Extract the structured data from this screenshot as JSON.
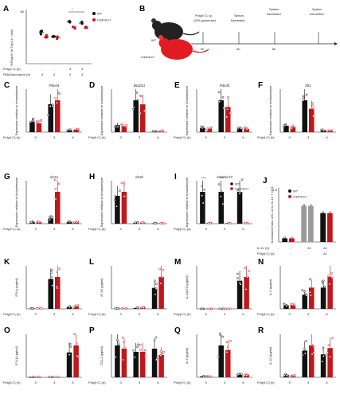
{
  "colors": {
    "wt": "#111111",
    "ko": "#c0171c",
    "grey_bar": "#9a9a9a",
    "bg": "#ffffff"
  },
  "panel_a": {
    "letter": "A",
    "ylabel": "%Foxp3+ in Thy1.1+ cells",
    "ymax": "80",
    "row1": {
      "label": "Poly(I:C) (h)",
      "values": [
        "-",
        "-",
        "3",
        "3"
      ]
    },
    "row2": {
      "label": "PMA/Ionomycin (h)",
      "values": [
        "4",
        "4",
        "4",
        "4"
      ]
    },
    "sig": "*",
    "legend": [
      {
        "name": "WT"
      },
      {
        "name": "Cd4mir17"
      }
    ]
  },
  "panel_b": {
    "letter": "B",
    "wt_label": "WT",
    "ko_label": "Cd4mir17",
    "steps": [
      {
        "title": "Poly(I:C) i.p.",
        "sub": "(200 μg/mouse)",
        "time": "0h"
      },
      {
        "title": "Serum",
        "sub": "harvested",
        "time": "3h"
      },
      {
        "title": "Spleen",
        "sub": "harvested",
        "time": "6h"
      },
      {
        "title": "Spleen",
        "sub": "harvested",
        "time": ""
      }
    ]
  },
  "panels": [
    {
      "letter": "C",
      "title": "Pdcd4",
      "ylabel": "Expression relative to housekeeper",
      "xrow_label": "Poly(I:C) (h)",
      "xvals": [
        "0",
        "3",
        "6"
      ]
    },
    {
      "letter": "D",
      "title": "Bcl2l11",
      "ylabel": "Expression relative to housekeeper",
      "xrow_label": "Poly(I:C) (h)",
      "xvals": [
        "0",
        "3",
        "6"
      ]
    },
    {
      "letter": "E",
      "title": "Pdcd4",
      "ylabel": "Expression relative to housekeeper",
      "xrow_label": "Poly(I:C) (h)",
      "xvals": [
        "0",
        "3",
        "6"
      ]
    },
    {
      "letter": "F",
      "title": "Ifit1",
      "ylabel": "Expression relative to housekeeper",
      "xrow_label": "Poly(I:C) (h)",
      "xvals": [
        "0",
        "3",
        "6"
      ]
    },
    {
      "letter": "G",
      "title": "Il12a",
      "ylabel": "Expression relative to housekeeper",
      "xrow_label": "Poly(I:C) (h)",
      "xvals": [
        "0",
        "3",
        "6"
      ]
    },
    {
      "letter": "H",
      "title": "Il12b",
      "ylabel": "Expression relative to housekeeper",
      "xrow_label": "Poly(I:C) (h)",
      "xvals": [
        "0",
        "3",
        "6"
      ]
    },
    {
      "letter": "I",
      "title": "Cd4mir17",
      "ylabel": "Expression relative to housekeeper",
      "xrow_label": "Poly(I:C) (h)",
      "xvals": [
        "0",
        "3",
        "6"
      ],
      "sig": [
        "****",
        "****"
      ],
      "legend": [
        "WT",
        "Cd4mir17"
      ]
    },
    {
      "letter": "K",
      "title": "",
      "ylabel": "IFN-γ (pg/ml)",
      "xrow_label": "Poly(I:C) (h)",
      "xvals": [
        "0",
        "3",
        "6"
      ]
    },
    {
      "letter": "L",
      "title": "",
      "ylabel": "IP-10 (pg/ml)",
      "xrow_label": "Poly(I:C) (h)",
      "xvals": [
        "0",
        "3",
        "6"
      ]
    },
    {
      "letter": "M",
      "title": "",
      "ylabel": "IL-12p70 (pg/ml)",
      "xrow_label": "Poly(I:C) (h)",
      "xvals": [
        "0",
        "3",
        "6"
      ]
    },
    {
      "letter": "N",
      "title": "",
      "ylabel": "IL-2 (pg/ml)",
      "xrow_label": "Poly(I:C) (h)",
      "xvals": [
        "0",
        "3",
        "6"
      ]
    },
    {
      "letter": "O",
      "title": "",
      "ylabel": "IFN-β (pg/ml)",
      "xrow_label": "Poly(I:C) (h)",
      "xvals": [
        "0",
        "3",
        "6"
      ]
    },
    {
      "letter": "P",
      "title": "",
      "ylabel": "CCL2 (pg/ml)",
      "xrow_label": "Poly(I:C) (h)",
      "xvals": [
        "0",
        "3",
        "6"
      ]
    },
    {
      "letter": "Q",
      "title": "",
      "ylabel": "IL-6 (pg/ml)",
      "xrow_label": "Poly(I:C) (h)",
      "xvals": [
        "0",
        "3",
        "6"
      ]
    },
    {
      "letter": "R",
      "title": "",
      "ylabel": "IL-10 (pg/ml)",
      "xrow_label": "Poly(I:C) (h)",
      "xvals": [
        "0",
        "3",
        "6"
      ]
    }
  ],
  "panel_j": {
    "letter": "J",
    "ylabel": "Normalized ratio of IL-12 to IL-12 + CD4",
    "ymax": "1.5",
    "row1": {
      "label": "IL-12 (h)",
      "values": [
        "-",
        "24",
        "24"
      ]
    },
    "row2": {
      "label": "Poly(I:C) (h)",
      "values": [
        "-",
        "-",
        "24"
      ]
    },
    "legend": [
      "WT",
      "Cd4mir17"
    ]
  },
  "chart_data": [
    {
      "type": "bar",
      "panel": "C",
      "categories": [
        "0",
        "3",
        "6"
      ],
      "series": [
        {
          "name": "WT",
          "values": [
            0.08,
            0.22,
            0.02
          ]
        },
        {
          "name": "Cd4mir17",
          "values": [
            0.07,
            0.25,
            0.02
          ]
        }
      ]
    },
    {
      "type": "bar",
      "panel": "D",
      "categories": [
        "0",
        "3",
        "6"
      ],
      "series": [
        {
          "name": "WT",
          "values": [
            0.12,
            0.55,
            0.02
          ]
        },
        {
          "name": "Cd4mir17",
          "values": [
            0.1,
            0.48,
            0.02
          ]
        }
      ]
    },
    {
      "type": "bar",
      "panel": "E",
      "categories": [
        "0",
        "3",
        "6"
      ],
      "series": [
        {
          "name": "WT",
          "values": [
            0.05,
            0.38,
            0.05
          ]
        },
        {
          "name": "Cd4mir17",
          "values": [
            0.04,
            0.3,
            0.04
          ]
        }
      ]
    },
    {
      "type": "bar",
      "panel": "F",
      "categories": [
        "0",
        "3",
        "6"
      ],
      "series": [
        {
          "name": "WT",
          "values": [
            0.15,
            0.75,
            0.05
          ]
        },
        {
          "name": "Cd4mir17",
          "values": [
            0.12,
            0.55,
            0.04
          ]
        }
      ]
    },
    {
      "type": "bar",
      "panel": "G",
      "categories": [
        "0",
        "3",
        "6"
      ],
      "series": [
        {
          "name": "WT",
          "values": [
            0.01,
            0.03,
            0.01
          ]
        },
        {
          "name": "Cd4mir17",
          "values": [
            0.01,
            0.18,
            0.01
          ]
        }
      ]
    },
    {
      "type": "bar",
      "panel": "H",
      "categories": [
        "0",
        "3",
        "6"
      ],
      "series": [
        {
          "name": "WT",
          "values": [
            1.4,
            0.05,
            0.02
          ]
        },
        {
          "name": "Cd4mir17",
          "values": [
            1.6,
            0.06,
            0.02
          ]
        }
      ]
    },
    {
      "type": "bar",
      "panel": "I",
      "categories": [
        "0",
        "3",
        "6"
      ],
      "series": [
        {
          "name": "WT",
          "values": [
            1.0,
            1.0,
            1.0
          ]
        },
        {
          "name": "Cd4mir17",
          "values": [
            0.02,
            0.02,
            0.02
          ]
        }
      ]
    },
    {
      "type": "bar",
      "panel": "K",
      "categories": [
        "0",
        "3",
        "6"
      ],
      "series": [
        {
          "name": "WT",
          "values": [
            5,
            300,
            20
          ]
        },
        {
          "name": "Cd4mir17",
          "values": [
            5,
            320,
            25
          ]
        }
      ]
    },
    {
      "type": "bar",
      "panel": "L",
      "categories": [
        "0",
        "3",
        "6"
      ],
      "series": [
        {
          "name": "WT",
          "values": [
            5,
            10,
            250
          ]
        },
        {
          "name": "Cd4mir17",
          "values": [
            5,
            15,
            380
          ]
        }
      ]
    },
    {
      "type": "bar",
      "panel": "M",
      "categories": [
        "0",
        "3",
        "6"
      ],
      "series": [
        {
          "name": "WT",
          "values": [
            2,
            5,
            1500
          ]
        },
        {
          "name": "Cd4mir17",
          "values": [
            2,
            5,
            1700
          ]
        }
      ]
    },
    {
      "type": "bar",
      "panel": "N",
      "categories": [
        "0",
        "3",
        "6"
      ],
      "series": [
        {
          "name": "WT",
          "values": [
            2,
            8,
            12
          ]
        },
        {
          "name": "Cd4mir17",
          "values": [
            2,
            12,
            18
          ]
        }
      ]
    },
    {
      "type": "bar",
      "panel": "O",
      "categories": [
        "0",
        "3",
        "6"
      ],
      "series": [
        {
          "name": "WT",
          "values": [
            2,
            3,
            250
          ]
        },
        {
          "name": "Cd4mir17",
          "values": [
            2,
            3,
            320
          ]
        }
      ]
    },
    {
      "type": "bar",
      "panel": "P",
      "categories": [
        "0",
        "3",
        "6"
      ],
      "series": [
        {
          "name": "WT",
          "values": [
            100,
            80,
            90
          ]
        },
        {
          "name": "Cd4mir17",
          "values": [
            90,
            80,
            70
          ]
        }
      ]
    },
    {
      "type": "bar",
      "panel": "Q",
      "categories": [
        "0",
        "3",
        "6"
      ],
      "series": [
        {
          "name": "WT",
          "values": [
            10,
            350,
            40
          ]
        },
        {
          "name": "Cd4mir17",
          "values": [
            10,
            300,
            30
          ]
        }
      ]
    },
    {
      "type": "bar",
      "panel": "R",
      "categories": [
        "0",
        "3",
        "6"
      ],
      "series": [
        {
          "name": "WT",
          "values": [
            200,
            2100,
            1800
          ]
        },
        {
          "name": "Cd4mir17",
          "values": [
            180,
            2500,
            2300
          ]
        }
      ]
    },
    {
      "type": "bar",
      "panel": "J",
      "categories": [
        "-",
        "24",
        "24"
      ],
      "series": [
        {
          "name": "WT",
          "values": [
            0.1,
            1.0,
            0.8
          ]
        },
        {
          "name": "Cd4mir17",
          "values": [
            0.1,
            1.0,
            0.8
          ]
        }
      ]
    },
    {
      "type": "scatter",
      "panel": "A",
      "categories": [
        "1",
        "2",
        "3",
        "4"
      ],
      "series": [
        {
          "name": "WT",
          "values": [
            46,
            40,
            62,
            60
          ]
        },
        {
          "name": "Cd4mir17",
          "values": [
            40,
            38,
            55,
            52
          ]
        }
      ],
      "ylim": [
        0,
        80
      ]
    }
  ]
}
